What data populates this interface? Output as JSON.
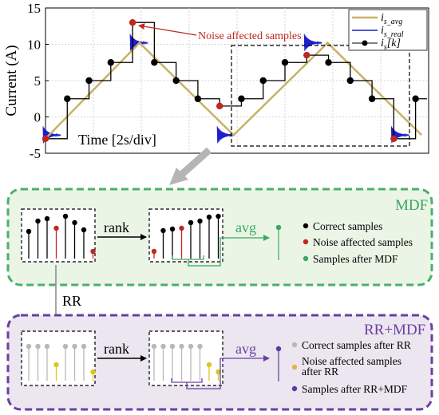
{
  "chart_data": {
    "type": "line",
    "ylabel": "Current (A)",
    "xlabel": "Time [2s/div]",
    "ylim": [
      -5,
      15
    ],
    "yticks": [
      -5,
      0,
      5,
      10,
      15
    ],
    "grid": true,
    "legend_position": "top-right",
    "series": [
      {
        "name": "i_s_avg",
        "color": "#c8b266",
        "x": [
          0,
          5.4,
          10.8,
          16.2,
          21.6
        ],
        "y": [
          -3,
          10.2,
          -2.5,
          10.2,
          -2.5
        ]
      },
      {
        "name": "i_s_real",
        "color": "#1f1fcc"
      },
      {
        "name": "i_s[k]",
        "color": "#000000",
        "x": [
          0,
          1.25,
          2.5,
          3.75,
          5.0,
          6.25,
          7.5,
          8.75,
          10.0,
          11.25,
          12.5,
          13.75,
          15.0,
          16.25,
          17.5,
          18.75,
          20.0,
          21.25
        ],
        "y": [
          -3,
          2.5,
          5.0,
          7.5,
          13.0,
          7.5,
          5.0,
          2.5,
          1.5,
          2.5,
          5.0,
          7.5,
          8.5,
          7.5,
          5.0,
          2.5,
          -3,
          2.5
        ],
        "noise_indices": [
          0,
          4,
          8,
          12,
          16
        ]
      }
    ]
  },
  "legend": {
    "avg": {
      "main": "i",
      "sub": "s_avg"
    },
    "real": {
      "main": "i",
      "sub": "s_real"
    },
    "sk": {
      "main": "i",
      "sub": "s",
      "suffix": "[k]"
    }
  },
  "annotation": {
    "noise_label": "Noise affected samples"
  },
  "mdf": {
    "title": "MDF",
    "rank_label": "rank",
    "avg_label": "avg",
    "legend": [
      "Correct samples",
      "Noise affected samples",
      "Samples after MDF"
    ],
    "colors": {
      "border": "#4caf6a",
      "fill": "#eaf5e6",
      "correct": "#000000",
      "noise": "#c0281f",
      "after": "#3aa860"
    }
  },
  "rr_label": "RR",
  "rrmdf": {
    "title": "RR+MDF",
    "rank_label": "rank",
    "avg_label": "avg",
    "legend": [
      "Correct samples after RR",
      "Noise affected samples",
      "after RR",
      "Samples after RR+MDF"
    ],
    "colors": {
      "border": "#6b3fa0",
      "fill": "#ece6f1",
      "correct": "#b8b8b8",
      "noise": "#e8b14a",
      "after": "#5a3c9a",
      "yellow": "#d9c81a"
    }
  }
}
